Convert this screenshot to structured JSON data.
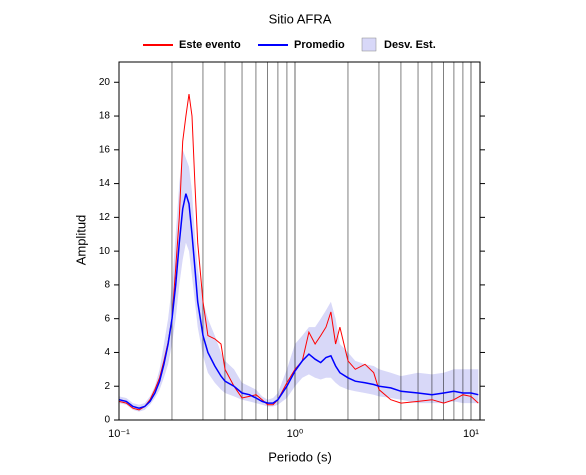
{
  "chart_data": {
    "type": "line",
    "title": "Sitio AFRA",
    "xlabel": "Periodo (s)",
    "ylabel": "Amplitud",
    "xscale": "log",
    "legend": "top",
    "x": [
      0.1,
      0.11,
      0.12,
      0.13,
      0.14,
      0.15,
      0.16,
      0.17,
      0.18,
      0.19,
      0.2,
      0.21,
      0.22,
      0.23,
      0.24,
      0.25,
      0.26,
      0.27,
      0.28,
      0.3,
      0.32,
      0.35,
      0.38,
      0.4,
      0.45,
      0.5,
      0.55,
      0.6,
      0.65,
      0.7,
      0.75,
      0.8,
      0.9,
      1.0,
      1.1,
      1.2,
      1.3,
      1.4,
      1.5,
      1.6,
      1.7,
      1.8,
      2.0,
      2.2,
      2.5,
      2.8,
      3.0,
      3.5,
      4,
      5,
      6,
      7,
      8,
      9,
      10,
      11
    ],
    "series": [
      {
        "name": "Este evento",
        "color": "#ff0000",
        "values": [
          1.1,
          1.0,
          0.7,
          0.6,
          0.8,
          1.2,
          1.8,
          2.5,
          3.5,
          4.6,
          6.0,
          9.0,
          12.0,
          16.5,
          18.0,
          19.3,
          18.0,
          14.0,
          10.5,
          7.0,
          5.0,
          4.8,
          4.5,
          3.0,
          2.0,
          1.3,
          1.4,
          1.5,
          1.2,
          0.9,
          0.9,
          1.2,
          2.2,
          3.0,
          3.5,
          5.2,
          4.5,
          5.0,
          5.5,
          6.4,
          4.5,
          5.5,
          3.5,
          3.0,
          3.3,
          2.8,
          1.8,
          1.2,
          1.0,
          1.1,
          1.2,
          1.0,
          1.2,
          1.5,
          1.4,
          1.0
        ]
      },
      {
        "name": "Promedio",
        "color": "#0000ff",
        "values": [
          1.2,
          1.1,
          0.8,
          0.7,
          0.8,
          1.1,
          1.6,
          2.3,
          3.3,
          4.5,
          6.0,
          8.0,
          10.5,
          12.5,
          13.4,
          12.8,
          11.0,
          9.0,
          7.0,
          5.0,
          4.0,
          3.2,
          2.6,
          2.3,
          2.0,
          1.6,
          1.5,
          1.3,
          1.1,
          1.0,
          1.0,
          1.2,
          2.0,
          2.9,
          3.5,
          3.9,
          3.6,
          3.4,
          3.7,
          3.8,
          3.2,
          2.8,
          2.5,
          2.3,
          2.2,
          2.1,
          2.0,
          1.9,
          1.7,
          1.6,
          1.5,
          1.6,
          1.7,
          1.6,
          1.6,
          1.5
        ]
      },
      {
        "name": "Desv. Est.",
        "color": "#d8d8f8",
        "type": "band",
        "upper": [
          1.4,
          1.3,
          1.0,
          0.9,
          1.0,
          1.4,
          2.0,
          3.0,
          4.5,
          6.0,
          8.0,
          11.0,
          14.0,
          16.0,
          15.5,
          15.0,
          13.5,
          11.0,
          9.0,
          7.0,
          6.0,
          5.0,
          4.0,
          3.5,
          3.0,
          2.2,
          2.0,
          1.8,
          1.4,
          1.2,
          1.3,
          1.6,
          3.0,
          4.5,
          5.0,
          5.5,
          5.5,
          6.0,
          6.5,
          7.0,
          6.0,
          4.5,
          4.0,
          3.5,
          3.3,
          3.2,
          3.0,
          2.8,
          2.6,
          2.8,
          2.7,
          2.8,
          3.0,
          3.0,
          3.0,
          3.0
        ],
        "lower": [
          1.0,
          0.9,
          0.6,
          0.5,
          0.6,
          0.9,
          1.3,
          1.8,
          2.5,
          3.3,
          4.5,
          6.0,
          8.0,
          9.5,
          10.5,
          10.0,
          8.5,
          7.0,
          5.5,
          3.8,
          2.8,
          2.2,
          1.8,
          1.6,
          1.4,
          1.2,
          1.1,
          1.0,
          0.9,
          0.8,
          0.8,
          0.9,
          1.3,
          2.0,
          2.5,
          2.7,
          2.5,
          2.4,
          2.5,
          2.5,
          2.2,
          2.0,
          1.8,
          1.7,
          1.6,
          1.5,
          1.4,
          1.3,
          1.2,
          1.0,
          1.0,
          1.0,
          1.1,
          1.0,
          1.0,
          1.0
        ]
      }
    ],
    "xlim": [
      0.1,
      11.25
    ],
    "ylim": [
      0,
      21.2
    ],
    "xticks": [
      {
        "value": 0.1,
        "label": "10⁻¹"
      },
      {
        "value": 1,
        "label": "10⁰"
      },
      {
        "value": 10,
        "label": "10¹"
      }
    ],
    "xgrid": [
      0.2,
      0.3,
      0.4,
      0.5,
      0.6,
      0.7,
      0.8,
      0.9,
      2,
      3,
      4,
      5,
      6,
      7,
      8,
      9
    ],
    "yticks": [
      0,
      2,
      4,
      6,
      8,
      10,
      12,
      14,
      16,
      18,
      20
    ]
  }
}
